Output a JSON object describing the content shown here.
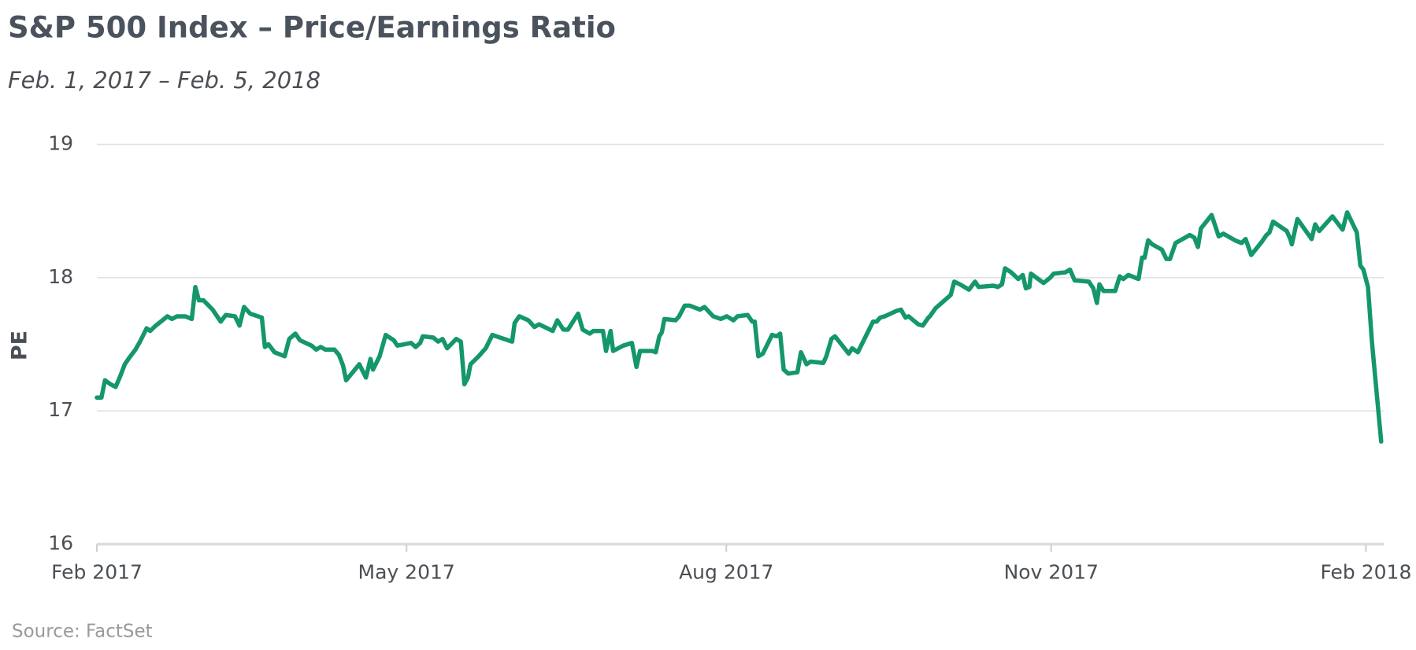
{
  "chart_data": {
    "type": "line",
    "title": "S&P 500 Index – Price/Earnings Ratio",
    "subtitle": "Feb. 1, 2017 – Feb. 5, 2018",
    "y_label": "PE",
    "source": "Source: FactSet",
    "grid": true,
    "xlim": [
      0,
      253.5
    ],
    "xticks": [
      {
        "value": 0,
        "label": "Feb 2017"
      },
      {
        "value": 61,
        "label": "May 2017"
      },
      {
        "value": 124,
        "label": "Aug 2017"
      },
      {
        "value": 188,
        "label": "Nov 2017"
      },
      {
        "value": 250,
        "label": "Feb 2018"
      }
    ],
    "ylim": [
      16,
      19
    ],
    "yticks": [
      16,
      17,
      18,
      19
    ],
    "x": [
      0,
      0.9,
      1.6,
      2.7,
      3.7,
      4.6,
      5.5,
      6.4,
      7.6,
      8.5,
      9.8,
      10.5,
      11.6,
      12.6,
      13.9,
      14.8,
      15.8,
      17.4,
      18.7,
      19.4,
      20.1,
      21.0,
      22.8,
      24.4,
      25.4,
      27.2,
      28.1,
      29.0,
      30.2,
      32.5,
      33.1,
      33.8,
      35.0,
      37.0,
      37.9,
      39.1,
      40.0,
      42.3,
      43.2,
      44.1,
      45.0,
      46.8,
      47.7,
      48.5,
      49.1,
      51.7,
      53.0,
      53.9,
      54.4,
      55.7,
      56.9,
      58.5,
      59.2,
      61.9,
      62.8,
      63.7,
      64.2,
      66.3,
      67.2,
      68.1,
      69.0,
      70.8,
      71.7,
      72.4,
      73.1,
      73.6,
      75.2,
      76.6,
      77.9,
      81.8,
      82.3,
      83.2,
      85.0,
      86.2,
      87.1,
      89.8,
      90.7,
      91.9,
      92.8,
      94.8,
      95.7,
      97.1,
      97.8,
      99.7,
      100.3,
      101.2,
      101.7,
      103.7,
      105.4,
      106.3,
      107.0,
      109.4,
      110.1,
      110.8,
      111.3,
      111.8,
      114.0,
      114.7,
      115.8,
      116.8,
      118.8,
      119.7,
      121.4,
      122.9,
      124.1,
      125.4,
      126.2,
      128.2,
      129.1,
      129.6,
      130.3,
      131.2,
      133.0,
      133.9,
      134.6,
      135.3,
      136.2,
      138.0,
      138.7,
      139.8,
      140.6,
      143.1,
      143.7,
      144.7,
      145.4,
      148.1,
      148.8,
      149.9,
      152.9,
      153.6,
      154.3,
      155.2,
      157.5,
      158.4,
      159.3,
      159.9,
      161.8,
      162.7,
      163.8,
      164.1,
      165.2,
      166.4,
      167.3,
      168.2,
      168.9,
      170.0,
      171.8,
      173.0,
      173.7,
      176.6,
      177.5,
      178.3,
      178.9,
      180.1,
      181.5,
      182.4,
      183.0,
      183.7,
      184.0,
      186.5,
      187.8,
      188.5,
      190.8,
      191.7,
      192.6,
      195.4,
      196.3,
      197.0,
      197.5,
      198.3,
      200.6,
      201.5,
      202.2,
      203.2,
      205.2,
      205.9,
      206.4,
      207.1,
      207.9,
      209.8,
      210.7,
      211.4,
      212.5,
      215.3,
      216.2,
      216.9,
      217.5,
      219.6,
      221.0,
      221.9,
      224.2,
      225.5,
      226.3,
      227.4,
      229.5,
      230.4,
      231.0,
      231.7,
      234.4,
      235.1,
      235.4,
      236.5,
      239.3,
      240.0,
      240.8,
      243.4,
      245.4,
      246.3,
      248.2,
      248.9,
      249.5,
      250.4,
      251.2,
      253.0
    ],
    "series": [
      {
        "name": "PE",
        "color": "#14976a",
        "values": [
          17.1,
          17.1,
          17.23,
          17.2,
          17.18,
          17.26,
          17.35,
          17.4,
          17.46,
          17.52,
          17.62,
          17.6,
          17.64,
          17.67,
          17.71,
          17.69,
          17.71,
          17.71,
          17.69,
          17.93,
          17.83,
          17.83,
          17.76,
          17.67,
          17.72,
          17.71,
          17.64,
          17.78,
          17.73,
          17.7,
          17.48,
          17.5,
          17.44,
          17.41,
          17.54,
          17.58,
          17.53,
          17.49,
          17.46,
          17.48,
          17.46,
          17.46,
          17.42,
          17.34,
          17.23,
          17.35,
          17.25,
          17.39,
          17.31,
          17.41,
          17.57,
          17.53,
          17.49,
          17.51,
          17.48,
          17.51,
          17.56,
          17.55,
          17.52,
          17.54,
          17.47,
          17.54,
          17.52,
          17.2,
          17.25,
          17.35,
          17.41,
          17.47,
          17.57,
          17.52,
          17.66,
          17.71,
          17.68,
          17.63,
          17.65,
          17.6,
          17.68,
          17.61,
          17.61,
          17.73,
          17.61,
          17.58,
          17.6,
          17.6,
          17.45,
          17.6,
          17.45,
          17.49,
          17.51,
          17.33,
          17.45,
          17.45,
          17.44,
          17.56,
          17.59,
          17.69,
          17.68,
          17.71,
          17.79,
          17.79,
          17.76,
          17.78,
          17.71,
          17.69,
          17.71,
          17.68,
          17.71,
          17.72,
          17.67,
          17.67,
          17.41,
          17.43,
          17.57,
          17.56,
          17.58,
          17.31,
          17.28,
          17.29,
          17.44,
          17.35,
          17.37,
          17.36,
          17.41,
          17.54,
          17.56,
          17.43,
          17.47,
          17.44,
          17.67,
          17.67,
          17.7,
          17.71,
          17.75,
          17.76,
          17.7,
          17.71,
          17.65,
          17.64,
          17.7,
          17.71,
          17.77,
          17.81,
          17.84,
          17.87,
          17.97,
          17.95,
          17.91,
          17.97,
          17.93,
          17.94,
          17.93,
          17.95,
          18.07,
          18.04,
          17.99,
          18.02,
          17.92,
          17.93,
          18.03,
          17.96,
          18.0,
          18.03,
          18.04,
          18.06,
          17.98,
          17.97,
          17.92,
          17.81,
          17.95,
          17.9,
          17.9,
          18.01,
          17.99,
          18.02,
          17.99,
          18.15,
          18.15,
          18.28,
          18.25,
          18.21,
          18.14,
          18.14,
          18.26,
          18.32,
          18.3,
          18.23,
          18.37,
          18.47,
          18.31,
          18.33,
          18.28,
          18.26,
          18.29,
          18.17,
          18.27,
          18.32,
          18.34,
          18.42,
          18.35,
          18.29,
          18.25,
          18.44,
          18.29,
          18.4,
          18.35,
          18.46,
          18.36,
          18.49,
          18.34,
          18.09,
          18.06,
          17.93,
          17.51,
          16.77
        ]
      }
    ]
  }
}
